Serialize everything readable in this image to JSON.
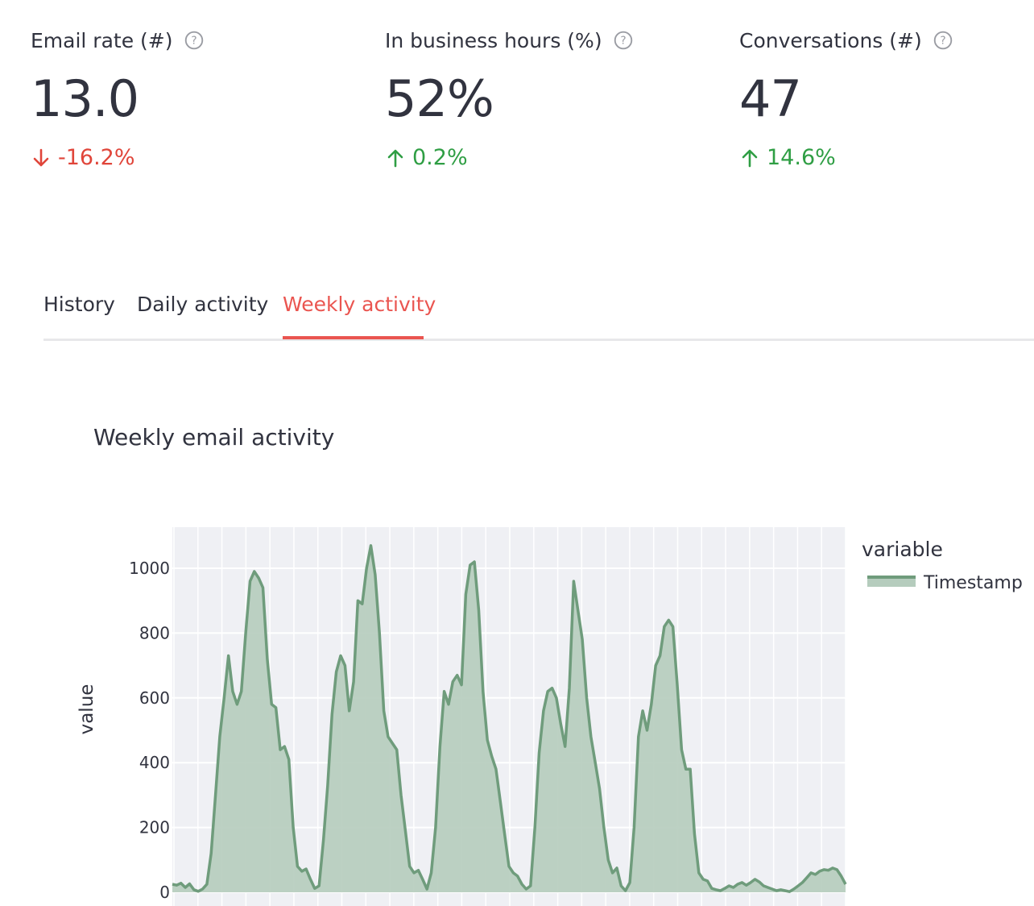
{
  "metrics": [
    {
      "label": "Email rate (#)",
      "value": "13.0",
      "delta": "-16.2%",
      "direction": "down",
      "help_icon": "question-circle-icon"
    },
    {
      "label": "In business hours (%)",
      "value": "52%",
      "delta": "0.2%",
      "direction": "up",
      "help_icon": "question-circle-icon"
    },
    {
      "label": "Conversations (#)",
      "value": "47",
      "delta": "14.6%",
      "direction": "up",
      "help_icon": "question-circle-icon"
    }
  ],
  "tabs": {
    "history": "History",
    "daily": "Daily activity",
    "weekly": "Weekly activity",
    "active": "Weekly activity"
  },
  "colors": {
    "accent": "#ea5550",
    "down": "#e0453a",
    "up": "#2f9e44",
    "series_line": "#6f9c7c",
    "series_fill": "#b5ccbd",
    "plot_bg": "#eff0f4"
  },
  "chart_data": {
    "type": "area",
    "title": "Weekly email activity",
    "ylabel": "value",
    "xlabel": "",
    "ylim": [
      0,
      1100
    ],
    "yticks": [
      0,
      200,
      400,
      600,
      800,
      1000
    ],
    "grid": true,
    "legend": {
      "title": "variable",
      "position": "top-right"
    },
    "series": [
      {
        "name": "Timestamp",
        "values": [
          25,
          22,
          28,
          15,
          26,
          8,
          3,
          10,
          25,
          120,
          300,
          480,
          600,
          730,
          620,
          580,
          620,
          800,
          960,
          990,
          970,
          940,
          720,
          580,
          570,
          440,
          450,
          410,
          200,
          80,
          65,
          72,
          40,
          12,
          20,
          160,
          330,
          550,
          680,
          730,
          700,
          560,
          650,
          900,
          890,
          1000,
          1070,
          980,
          800,
          560,
          480,
          460,
          440,
          300,
          190,
          80,
          60,
          68,
          40,
          10,
          60,
          200,
          450,
          620,
          580,
          650,
          670,
          640,
          920,
          1010,
          1020,
          870,
          620,
          470,
          420,
          380,
          280,
          180,
          80,
          60,
          50,
          25,
          10,
          20,
          200,
          430,
          560,
          620,
          630,
          600,
          520,
          450,
          630,
          960,
          870,
          780,
          600,
          480,
          400,
          320,
          200,
          100,
          60,
          75,
          20,
          5,
          30,
          200,
          480,
          560,
          500,
          580,
          700,
          730,
          820,
          840,
          820,
          640,
          440,
          380,
          380,
          180,
          60,
          40,
          35,
          12,
          8,
          5,
          12,
          20,
          15,
          25,
          30,
          22,
          30,
          40,
          32,
          20,
          15,
          10,
          5,
          8,
          5,
          2,
          10,
          20,
          30,
          45,
          60,
          55,
          65,
          70,
          68,
          75,
          70,
          50,
          25
        ]
      }
    ],
    "x_tick_count": 28
  }
}
